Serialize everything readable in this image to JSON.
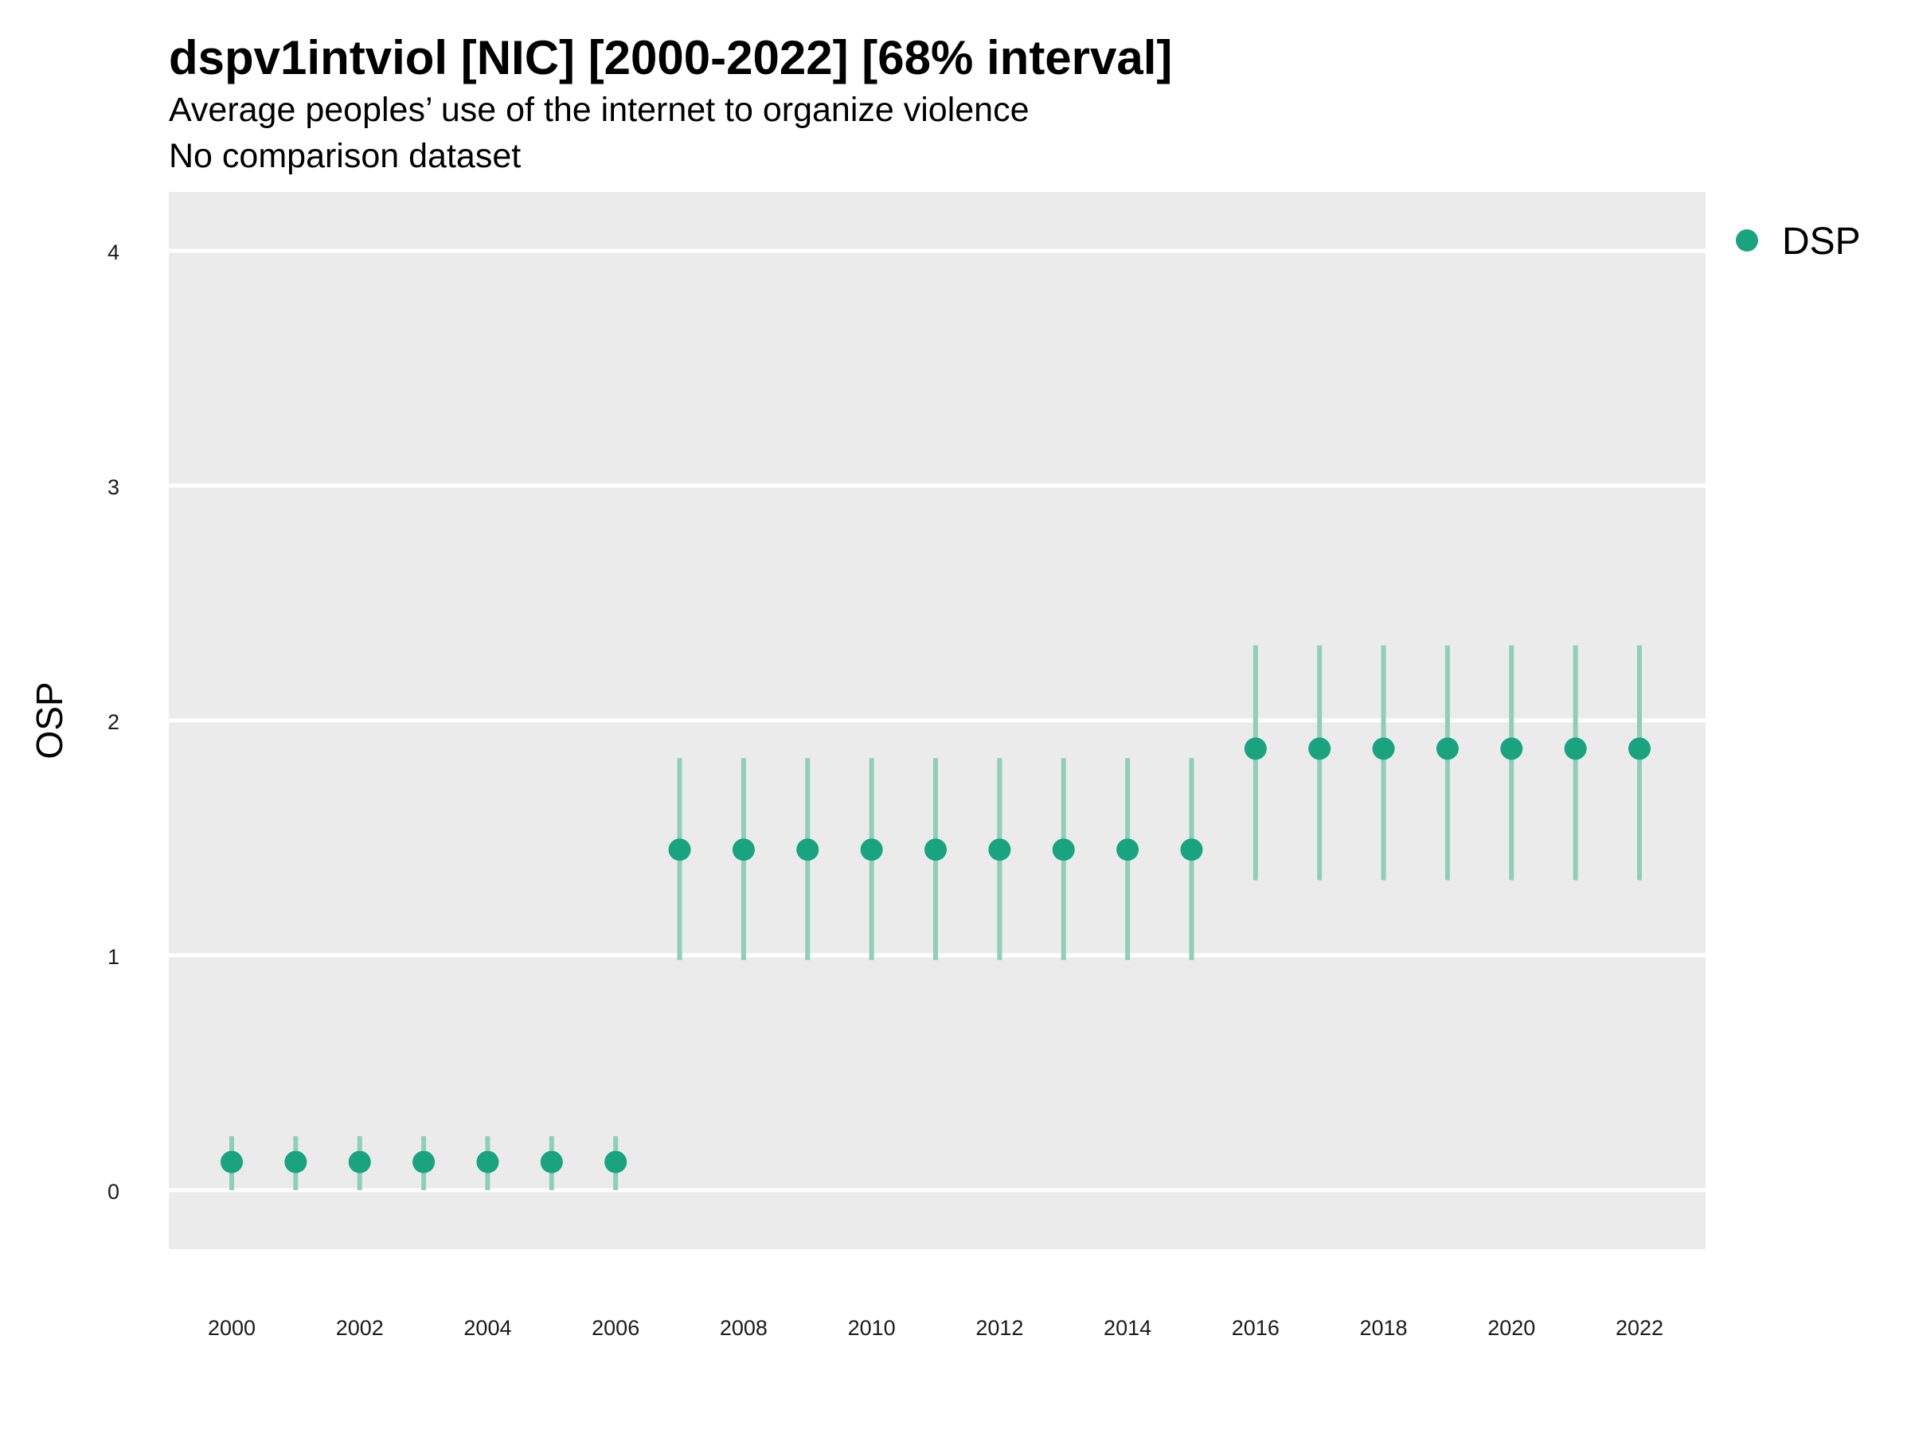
{
  "header": {
    "title": "dspv1intviol [NIC] [2000-2022] [68% interval]",
    "subtitle": "Average peoples’ use of the internet to organize violence",
    "subtitle2": "No comparison dataset"
  },
  "colors": {
    "panel": "#ebebeb",
    "grid": "#ffffff",
    "point": "#1aa37f",
    "interval": "#8fcfb8"
  },
  "chart_data": {
    "type": "scatter",
    "title": "dspv1intviol [NIC] [2000-2022] [68% interval]",
    "xlabel": "",
    "ylabel": "OSP",
    "xlim": [
      1999,
      2023
    ],
    "ylim": [
      -0.25,
      4.25
    ],
    "x_ticks": [
      "2000",
      "2002",
      "2004",
      "2006",
      "2008",
      "2010",
      "2012",
      "2014",
      "2016",
      "2018",
      "2020",
      "2022"
    ],
    "y_ticks": [
      "0",
      "1",
      "2",
      "3",
      "4"
    ],
    "grid": true,
    "legend_position": "right",
    "series": [
      {
        "name": "DSP",
        "x": [
          2000,
          2001,
          2002,
          2003,
          2004,
          2005,
          2006,
          2007,
          2008,
          2009,
          2010,
          2011,
          2012,
          2013,
          2014,
          2015,
          2016,
          2017,
          2018,
          2019,
          2020,
          2021,
          2022
        ],
        "y": [
          0.12,
          0.12,
          0.12,
          0.12,
          0.12,
          0.12,
          0.12,
          1.45,
          1.45,
          1.45,
          1.45,
          1.45,
          1.45,
          1.45,
          1.45,
          1.45,
          1.88,
          1.88,
          1.88,
          1.88,
          1.88,
          1.88,
          1.88
        ],
        "lower": [
          0.0,
          0.0,
          0.0,
          0.0,
          0.0,
          0.0,
          0.0,
          0.98,
          0.98,
          0.98,
          0.98,
          0.98,
          0.98,
          0.98,
          0.98,
          0.98,
          1.32,
          1.32,
          1.32,
          1.32,
          1.32,
          1.32,
          1.32
        ],
        "upper": [
          0.23,
          0.23,
          0.23,
          0.23,
          0.23,
          0.23,
          0.23,
          1.84,
          1.84,
          1.84,
          1.84,
          1.84,
          1.84,
          1.84,
          1.84,
          1.84,
          2.32,
          2.32,
          2.32,
          2.32,
          2.32,
          2.32,
          2.32
        ]
      }
    ]
  }
}
